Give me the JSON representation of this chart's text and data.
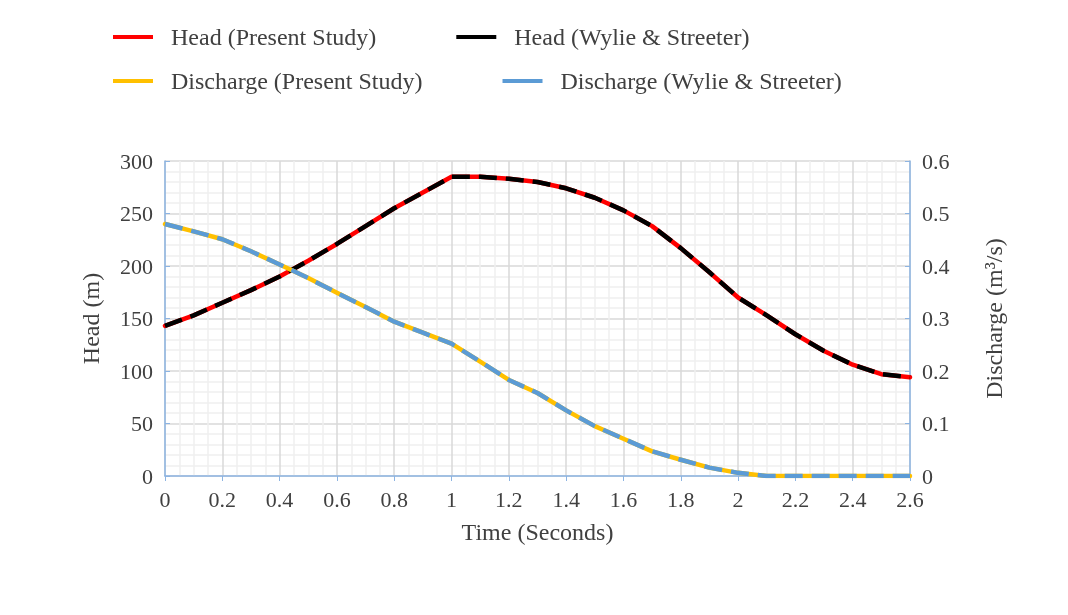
{
  "chart_data": {
    "type": "line",
    "xlabel": "Time (Seconds)",
    "ylabel": "Head (m)",
    "y2label": "Discharge (m³/s)",
    "x": [
      0,
      0.1,
      0.2,
      0.3,
      0.4,
      0.5,
      0.6,
      0.7,
      0.8,
      0.9,
      1.0,
      1.1,
      1.2,
      1.3,
      1.4,
      1.5,
      1.6,
      1.7,
      1.8,
      1.9,
      2.0,
      2.1,
      2.2,
      2.3,
      2.4,
      2.5,
      2.6
    ],
    "series": [
      {
        "name": "Head (Present Study)",
        "color": "#ff0000",
        "line_style": "solid",
        "values": [
          143,
          153,
          165,
          177,
          190,
          205,
          221,
          238,
          255,
          270,
          285,
          285,
          283,
          280,
          274,
          265,
          253,
          238,
          217,
          194,
          170,
          153,
          135,
          119,
          106,
          97,
          94
        ]
      },
      {
        "name": "Head (Wylie & Streeter)",
        "color": "#000000",
        "line_style": "dashed",
        "values": [
          143,
          153,
          165,
          177,
          190,
          205,
          221,
          238,
          255,
          270,
          285,
          285,
          283,
          280,
          274,
          265,
          253,
          238,
          217,
          194,
          170,
          153,
          135,
          119,
          106,
          97,
          94
        ]
      },
      {
        "name": "Discharge (Present Study)",
        "color": "#ffc000",
        "line_style": "solid",
        "axis": "y2",
        "values": [
          0.48,
          0.466,
          0.451,
          0.428,
          0.403,
          0.377,
          0.349,
          0.322,
          0.294,
          0.273,
          0.252,
          0.218,
          0.183,
          0.158,
          0.125,
          0.095,
          0.071,
          0.047,
          0.031,
          0.016,
          0.006,
          0,
          0,
          0,
          0,
          0,
          0
        ]
      },
      {
        "name": "Discharge (Wylie & Streeter)",
        "color": "#5b9bd5",
        "line_style": "dashed",
        "axis": "y2",
        "values": [
          0.48,
          0.466,
          0.451,
          0.428,
          0.403,
          0.377,
          0.349,
          0.322,
          0.294,
          0.273,
          0.252,
          0.218,
          0.183,
          0.158,
          0.125,
          0.095,
          0.071,
          0.047,
          0.031,
          0.016,
          0.006,
          0,
          0,
          0,
          0,
          0,
          0
        ]
      }
    ],
    "xlim": [
      0,
      2.6
    ],
    "xticks": [
      0,
      0.2,
      0.4,
      0.6,
      0.8,
      1,
      1.2,
      1.4,
      1.6,
      1.8,
      2,
      2.2,
      2.4,
      2.6
    ],
    "ylim": [
      0,
      300
    ],
    "yticks": [
      0,
      50,
      100,
      150,
      200,
      250,
      300
    ],
    "y2lim": [
      0,
      0.6
    ],
    "y2ticks": [
      0,
      0.1,
      0.2,
      0.3,
      0.4,
      0.5,
      0.6
    ],
    "grid": true,
    "legend": "top",
    "marker": "none"
  }
}
